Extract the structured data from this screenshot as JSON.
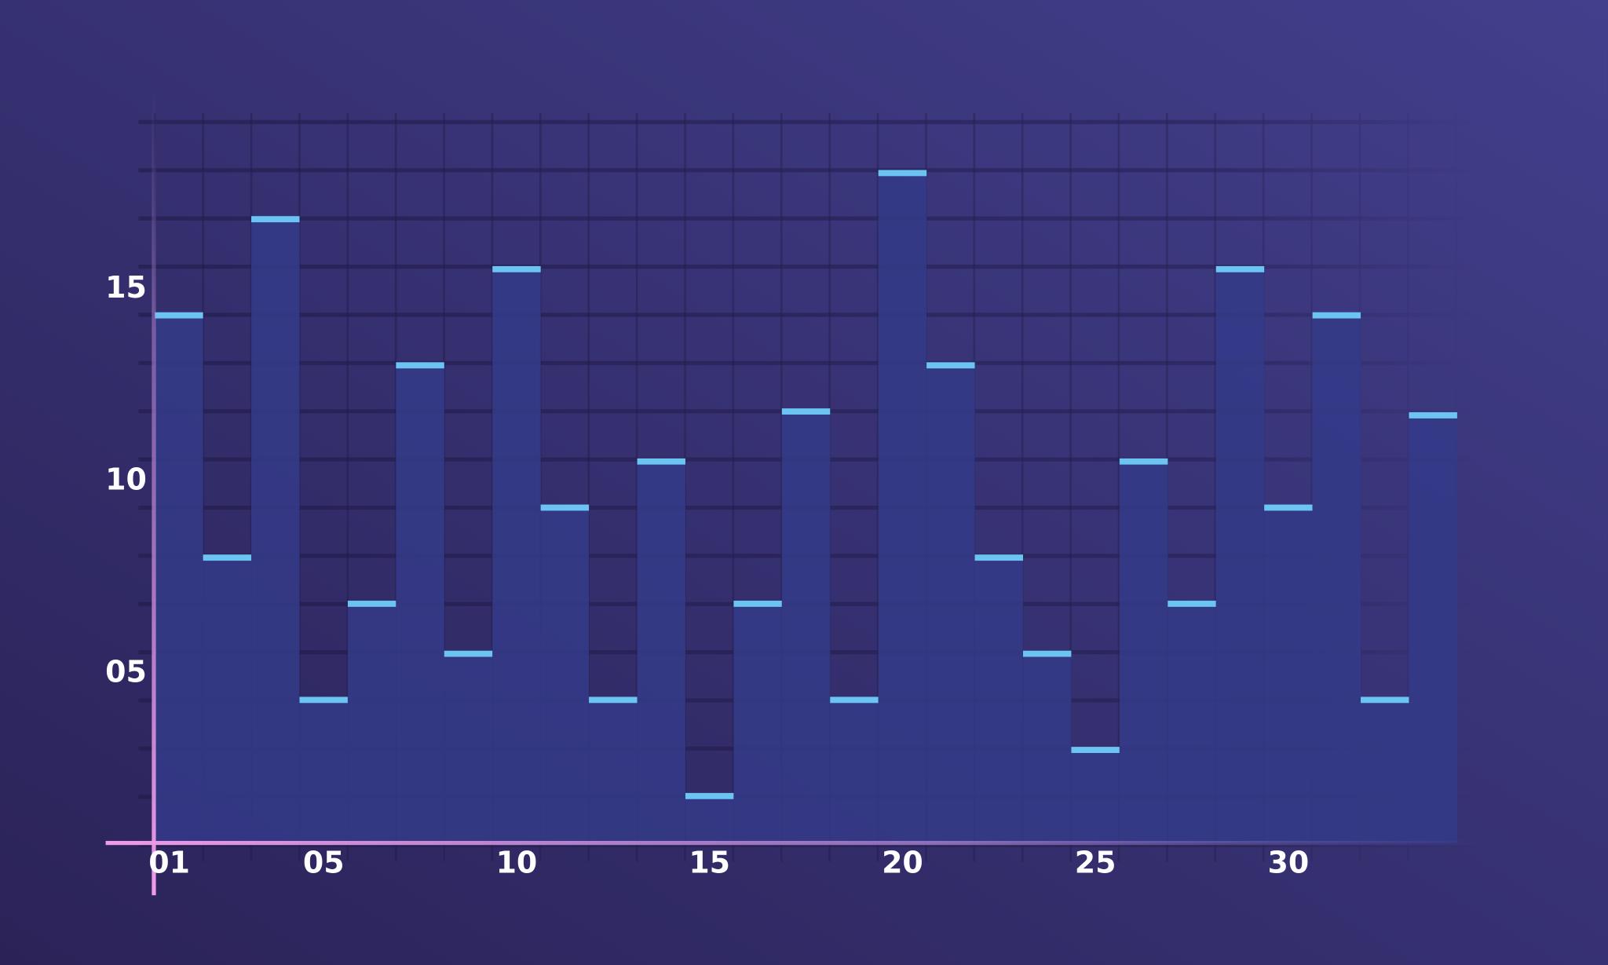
{
  "chart_data": {
    "type": "bar",
    "x": [
      1.25,
      2.5,
      3.75,
      5,
      6.25,
      7.5,
      8.75,
      10,
      11.25,
      12.5,
      13.75,
      15,
      16.25,
      17.5,
      18.75,
      20,
      21.25,
      22.5,
      23.75,
      25,
      26.25,
      27.5,
      28.75,
      30,
      31.25,
      32.5,
      33.75
    ],
    "values": [
      14.4,
      8.1,
      16.9,
      4.4,
      6.9,
      13.1,
      5.6,
      15.6,
      9.4,
      4.4,
      10.6,
      1.9,
      6.9,
      11.9,
      4.4,
      18.1,
      13.1,
      8.1,
      5.6,
      3.1,
      10.6,
      6.9,
      15.6,
      9.4,
      14.4,
      4.4,
      11.8
    ],
    "color": "#3b4ba3",
    "cap_color": "#6cc4f2",
    "xlim": [
      0.6,
      35.2
    ],
    "xticks": [
      {
        "value": 1,
        "label": "01"
      },
      {
        "value": 5,
        "label": "05"
      },
      10,
      15,
      20,
      25,
      30
    ],
    "ylim": [
      0.6,
      19.4
    ],
    "yticks": [
      {
        "value": 5,
        "label": "05"
      },
      10,
      15
    ]
  }
}
